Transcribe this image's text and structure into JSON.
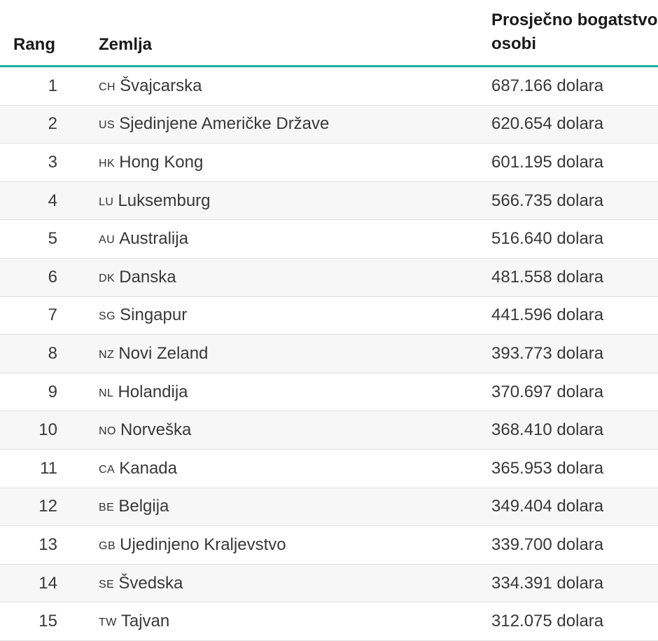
{
  "table": {
    "headers": {
      "rank": "Rang",
      "country": "Zemlja",
      "wealth_line1": "Prosječno bogatstvo po",
      "wealth_line2": "osobi"
    },
    "accent_color": "#1fae98",
    "rows": [
      {
        "rank": "1",
        "code": "CH",
        "country": "Švajcarska",
        "value": "687.166 dolara"
      },
      {
        "rank": "2",
        "code": "US",
        "country": "Sjedinjene Američke Države",
        "value": "620.654 dolara"
      },
      {
        "rank": "3",
        "code": "HK",
        "country": "Hong Kong",
        "value": "601.195 dolara"
      },
      {
        "rank": "4",
        "code": "LU",
        "country": "Luksemburg",
        "value": "566.735 dolara"
      },
      {
        "rank": "5",
        "code": "AU",
        "country": "Australija",
        "value": "516.640 dolara"
      },
      {
        "rank": "6",
        "code": "DK",
        "country": "Danska",
        "value": "481.558 dolara"
      },
      {
        "rank": "7",
        "code": "SG",
        "country": "Singapur",
        "value": "441.596 dolara"
      },
      {
        "rank": "8",
        "code": "NZ",
        "country": "Novi Zeland",
        "value": "393.773 dolara"
      },
      {
        "rank": "9",
        "code": "NL",
        "country": "Holandija",
        "value": "370.697 dolara"
      },
      {
        "rank": "10",
        "code": "NO",
        "country": "Norveška",
        "value": "368.410 dolara"
      },
      {
        "rank": "11",
        "code": "CA",
        "country": "Kanada",
        "value": "365.953 dolara"
      },
      {
        "rank": "12",
        "code": "BE",
        "country": "Belgija",
        "value": "349.404 dolara"
      },
      {
        "rank": "13",
        "code": "GB",
        "country": "Ujedinjeno Kraljevstvo",
        "value": "339.700 dolara"
      },
      {
        "rank": "14",
        "code": "SE",
        "country": "Švedska",
        "value": "334.391 dolara"
      },
      {
        "rank": "15",
        "code": "TW",
        "country": "Tajvan",
        "value": "312.075 dolara"
      }
    ]
  }
}
